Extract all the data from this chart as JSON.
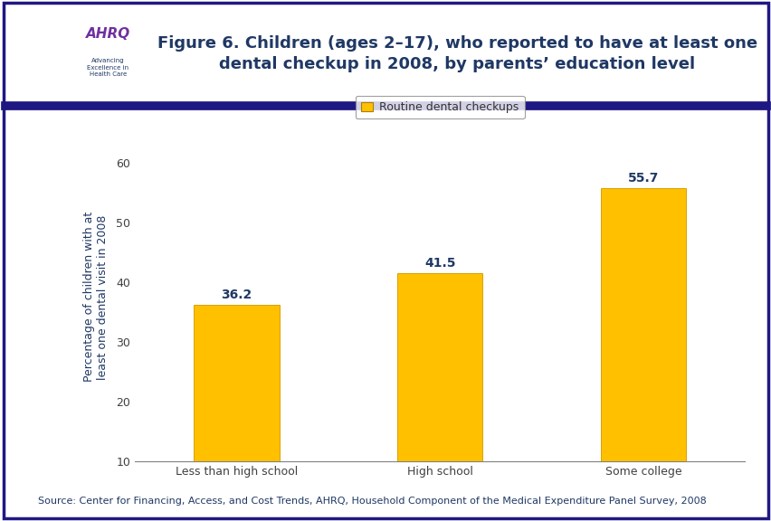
{
  "categories": [
    "Less than high school",
    "High school",
    "Some college"
  ],
  "values": [
    36.2,
    41.5,
    55.7
  ],
  "bar_color": "#FFC000",
  "bar_edge_color": "#DAA000",
  "title_line1": "Figure 6. Children (ages 2–17), who reported to have at least one",
  "title_line2": "dental checkup in 2008, by parents’ education level",
  "title_color": "#1F3864",
  "ylabel": "Percentage of children with at\nleast one dental visit in 2008",
  "ylabel_color": "#1F3864",
  "ylim": [
    10,
    65
  ],
  "yticks": [
    10,
    20,
    30,
    40,
    50,
    60
  ],
  "legend_label": "Routine dental checkups",
  "legend_box_color": "#FFC000",
  "value_label_color": "#1F3864",
  "tick_label_color": "#404040",
  "axis_color": "#808080",
  "background_color": "#FFFFFF",
  "border_color": "#1F1882",
  "separator_color": "#1F1882",
  "source_text": "Source: Center for Financing, Access, and Cost Trends, AHRQ, Household Component of the Medical Expenditure Panel Survey, 2008",
  "source_color": "#1F3864",
  "source_fontsize": 8,
  "title_fontsize": 13,
  "ylabel_fontsize": 9,
  "value_fontsize": 10,
  "tick_fontsize": 9,
  "legend_fontsize": 9,
  "logo_bg": "#1A7EBE",
  "logo_text_color": "#7030A0"
}
